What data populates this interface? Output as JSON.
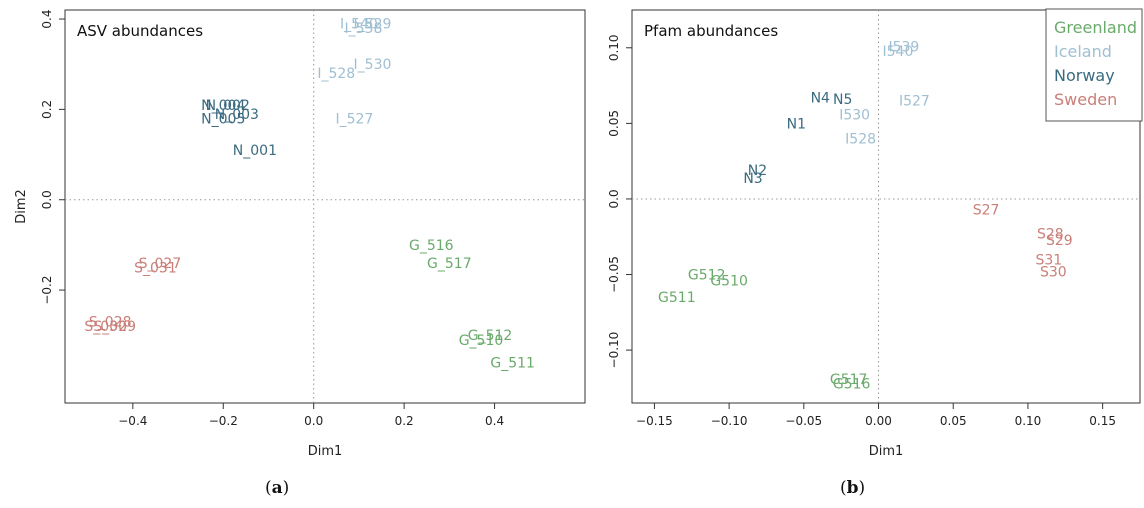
{
  "chart_data": [
    {
      "type": "scatter",
      "title": "ASV abundances",
      "xlabel": "Dim1",
      "ylabel": "Dim2",
      "xlim": [
        -0.55,
        0.6
      ],
      "ylim": [
        -0.45,
        0.42
      ],
      "xticks": [
        -0.4,
        -0.2,
        0.0,
        0.2,
        0.4
      ],
      "yticks": [
        -0.2,
        0.0,
        0.2,
        0.4
      ],
      "xtick_labels": [
        "−0.4",
        "−0.2",
        "0.0",
        "0.2",
        "0.4"
      ],
      "ytick_labels": [
        "−0.2",
        "0.0",
        "0.2",
        "0.4"
      ],
      "zero_lines": true,
      "legend": false,
      "series": [
        {
          "name": "Greenland",
          "color": "#6aaa6a",
          "points": [
            {
              "label": "G_516",
              "x": 0.26,
              "y": -0.1
            },
            {
              "label": "G_517",
              "x": 0.3,
              "y": -0.14
            },
            {
              "label": "G_512",
              "x": 0.39,
              "y": -0.3
            },
            {
              "label": "G_510",
              "x": 0.37,
              "y": -0.31
            },
            {
              "label": "G_511",
              "x": 0.44,
              "y": -0.36
            }
          ]
        },
        {
          "name": "Iceland",
          "color": "#9fbfd2",
          "points": [
            {
              "label": "I_529",
              "x": 0.13,
              "y": 0.39
            },
            {
              "label": "I_540",
              "x": 0.1,
              "y": 0.39
            },
            {
              "label": "I_538",
              "x": 0.11,
              "y": 0.38
            },
            {
              "label": "I_530",
              "x": 0.13,
              "y": 0.3
            },
            {
              "label": "I_528",
              "x": 0.05,
              "y": 0.28
            },
            {
              "label": "I_527",
              "x": 0.09,
              "y": 0.18
            }
          ]
        },
        {
          "name": "Norway",
          "color": "#3b6b80",
          "points": [
            {
              "label": "N_004",
              "x": -0.2,
              "y": 0.21
            },
            {
              "label": "N_002",
              "x": -0.19,
              "y": 0.21
            },
            {
              "label": "N_003",
              "x": -0.17,
              "y": 0.19
            },
            {
              "label": "N_005",
              "x": -0.2,
              "y": 0.18
            },
            {
              "label": "N_001",
              "x": -0.13,
              "y": 0.11
            }
          ]
        },
        {
          "name": "Sweden",
          "color": "#c97f78",
          "points": [
            {
              "label": "S_027",
              "x": -0.34,
              "y": -0.14
            },
            {
              "label": "S_031",
              "x": -0.35,
              "y": -0.15
            },
            {
              "label": "S_028",
              "x": -0.45,
              "y": -0.27
            },
            {
              "label": "S_030",
              "x": -0.46,
              "y": -0.28
            },
            {
              "label": "S_029",
              "x": -0.44,
              "y": -0.28
            }
          ]
        }
      ]
    },
    {
      "type": "scatter",
      "title": "Pfam abundances",
      "xlabel": "Dim1",
      "ylabel": "",
      "xlim": [
        -0.165,
        0.175
      ],
      "ylim": [
        -0.135,
        0.125
      ],
      "xticks": [
        -0.15,
        -0.1,
        -0.05,
        0.0,
        0.05,
        0.1,
        0.15
      ],
      "yticks": [
        -0.1,
        -0.05,
        0.0,
        0.05,
        0.1
      ],
      "xtick_labels": [
        "−0.15",
        "−0.10",
        "−0.05",
        "0.00",
        "0.05",
        "0.10",
        "0.15"
      ],
      "ytick_labels": [
        "−0.10",
        "−0.05",
        "0.0",
        "0.05",
        "0.10"
      ],
      "zero_lines": true,
      "legend": true,
      "legend_position": "top-right",
      "series": [
        {
          "name": "Greenland",
          "color": "#6aaa6a",
          "points": [
            {
              "label": "G512",
              "x": -0.115,
              "y": -0.05
            },
            {
              "label": "G510",
              "x": -0.1,
              "y": -0.054
            },
            {
              "label": "G511",
              "x": -0.135,
              "y": -0.065
            },
            {
              "label": "G517",
              "x": -0.02,
              "y": -0.119
            },
            {
              "label": "G516",
              "x": -0.018,
              "y": -0.122
            }
          ]
        },
        {
          "name": "Iceland",
          "color": "#9fbfd2",
          "points": [
            {
              "label": "I539",
              "x": 0.017,
              "y": 0.101
            },
            {
              "label": "I540",
              "x": 0.013,
              "y": 0.098
            },
            {
              "label": "I527",
              "x": 0.024,
              "y": 0.065
            },
            {
              "label": "I530",
              "x": -0.016,
              "y": 0.056
            },
            {
              "label": "I528",
              "x": -0.012,
              "y": 0.04
            }
          ]
        },
        {
          "name": "Norway",
          "color": "#3b6b80",
          "points": [
            {
              "label": "N4",
              "x": -0.039,
              "y": 0.067
            },
            {
              "label": "N5",
              "x": -0.024,
              "y": 0.066
            },
            {
              "label": "N1",
              "x": -0.055,
              "y": 0.05
            },
            {
              "label": "N2",
              "x": -0.081,
              "y": 0.019
            },
            {
              "label": "N3",
              "x": -0.084,
              "y": 0.014
            }
          ]
        },
        {
          "name": "Sweden",
          "color": "#c97f78",
          "points": [
            {
              "label": "S27",
              "x": 0.072,
              "y": -0.007
            },
            {
              "label": "S28",
              "x": 0.115,
              "y": -0.023
            },
            {
              "label": "S29",
              "x": 0.121,
              "y": -0.027
            },
            {
              "label": "S31",
              "x": 0.114,
              "y": -0.04
            },
            {
              "label": "S30",
              "x": 0.117,
              "y": -0.048
            }
          ]
        }
      ]
    }
  ],
  "captions": [
    "a",
    "b"
  ]
}
